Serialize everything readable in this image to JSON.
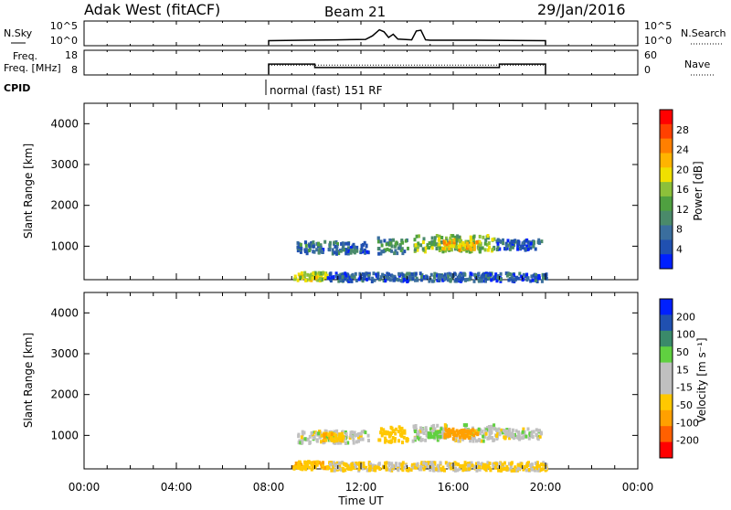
{
  "header": {
    "station": "Adak West (fitACF)",
    "beam": "Beam 21",
    "date": "29/Jan/2016"
  },
  "colors": {
    "power_scale": [
      "#0020ff",
      "#2050b0",
      "#3a6e9e",
      "#4a8a6a",
      "#4fa040",
      "#8cc03a",
      "#f0e000",
      "#ffb400",
      "#ff7f00",
      "#ff4000",
      "#ff0000"
    ],
    "velocity_scale": [
      "#ff0000",
      "#ff6000",
      "#ffa000",
      "#ffc800",
      "#c0c0c0",
      "#c0c0c0",
      "#60d040",
      "#3a8a6a",
      "#2050b0",
      "#0020ff"
    ],
    "ground_scatter": "#c0c0c0"
  },
  "chart_data": [
    {
      "type": "line",
      "name": "nsky-nsearch",
      "ylabel_left": "N.Sky",
      "ylabel_right": "N.Search",
      "yticks_left": [
        "10^5",
        "10^0"
      ],
      "yticks_right": [
        "10^5",
        "10^0"
      ],
      "x_hours": [
        8,
        9.5,
        11,
        12.2,
        12.5,
        12.8,
        13.0,
        13.2,
        13.4,
        13.6,
        14.2,
        14.4,
        14.6,
        14.8,
        15,
        17,
        20
      ],
      "y_log": [
        0.8,
        0.9,
        1.0,
        1.1,
        2.0,
        3.5,
        3.0,
        1.6,
        2.4,
        1.2,
        1.0,
        3.2,
        3.4,
        1.0,
        0.9,
        0.9,
        0.8
      ]
    },
    {
      "type": "line",
      "name": "freq-nave",
      "ylabel_left": "Freq. [MHz]",
      "ylabel_right": "Nave",
      "yticks_left": [
        "18",
        "8"
      ],
      "yticks_right": [
        "60",
        "0"
      ],
      "freq_x_hours": [
        8,
        10,
        10,
        18,
        18,
        20
      ],
      "freq_mhz": [
        12.5,
        12.5,
        10.8,
        10.8,
        12.5,
        12.5
      ],
      "nave_x_hours": [
        8,
        20
      ],
      "nave": [
        24,
        24
      ]
    },
    {
      "type": "table",
      "name": "cpid",
      "label": "CPID",
      "entries": [
        {
          "start_hour": 8,
          "text": "normal (fast) 151 RF"
        }
      ]
    },
    {
      "type": "heatmap",
      "name": "power",
      "ylabel": "Slant Range [km]",
      "yticks": [
        "1000",
        "2000",
        "3000",
        "4000"
      ],
      "ylim": [
        180,
        4500
      ],
      "colorbar_label": "Power [dB]",
      "colorbar_ticks": [
        "4",
        "8",
        "12",
        "16",
        "20",
        "24",
        "28"
      ],
      "colorbar_range": [
        0,
        32
      ],
      "regions": [
        {
          "t0": 9.2,
          "t1": 12.3,
          "r0": 850,
          "r1": 1150,
          "level": 7
        },
        {
          "t0": 12.7,
          "t1": 13.2,
          "r0": 850,
          "r1": 1250,
          "level": 9
        },
        {
          "t0": 13.2,
          "t1": 14.0,
          "r0": 850,
          "r1": 1200,
          "level": 10
        },
        {
          "t0": 14.2,
          "t1": 17.8,
          "r0": 900,
          "r1": 1300,
          "level": 14
        },
        {
          "t0": 15.5,
          "t1": 17.0,
          "r0": 950,
          "r1": 1200,
          "level": 21
        },
        {
          "t0": 17.8,
          "t1": 19.8,
          "r0": 950,
          "r1": 1200,
          "level": 6
        },
        {
          "t0": 9.0,
          "t1": 10.5,
          "r0": 200,
          "r1": 400,
          "level": 18
        },
        {
          "t0": 10.5,
          "t1": 20.0,
          "r0": 180,
          "r1": 380,
          "level": 6
        }
      ]
    },
    {
      "type": "heatmap",
      "name": "velocity",
      "ylabel": "Slant Range [km]",
      "yticks": [
        "1000",
        "2000",
        "3000",
        "4000"
      ],
      "ylim": [
        180,
        4500
      ],
      "colorbar_label": "Velocity [m s⁻¹]",
      "colorbar_ticks": [
        "-200",
        "-100",
        "-50",
        "-15",
        "15",
        "50",
        "100",
        "200"
      ],
      "colorbar_range": [
        -250,
        250
      ],
      "regions": [
        {
          "t0": 9.2,
          "t1": 12.3,
          "r0": 850,
          "r1": 1150,
          "vel": 0
        },
        {
          "t0": 10.2,
          "t1": 11.2,
          "r0": 900,
          "r1": 1100,
          "vel": -40
        },
        {
          "t0": 12.7,
          "t1": 14.0,
          "r0": 850,
          "r1": 1250,
          "vel": -35
        },
        {
          "t0": 14.2,
          "t1": 17.8,
          "r0": 900,
          "r1": 1300,
          "vel": 0
        },
        {
          "t0": 15.5,
          "t1": 17.0,
          "r0": 950,
          "r1": 1200,
          "vel": -80
        },
        {
          "t0": 14.8,
          "t1": 15.4,
          "r0": 1000,
          "r1": 1150,
          "vel": 30
        },
        {
          "t0": 17.8,
          "t1": 19.8,
          "r0": 950,
          "r1": 1200,
          "vel": 0
        },
        {
          "t0": 9.0,
          "t1": 10.5,
          "r0": 200,
          "r1": 400,
          "vel": -40
        },
        {
          "t0": 10.5,
          "t1": 20.0,
          "r0": 180,
          "r1": 380,
          "vel": -20
        }
      ]
    }
  ],
  "axis": {
    "xlabel": "Time UT",
    "xticks": [
      "00:00",
      "04:00",
      "08:00",
      "12:00",
      "16:00",
      "20:00",
      "00:00"
    ],
    "xlim_hours": [
      0,
      24
    ]
  }
}
